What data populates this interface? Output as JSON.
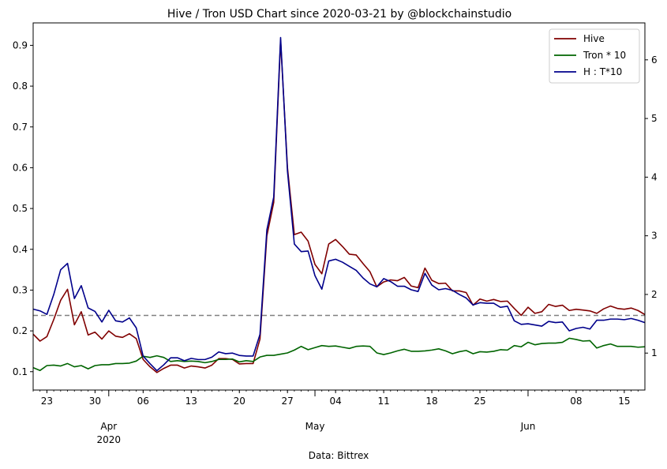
{
  "chart_data": {
    "type": "line",
    "title": "Hive / Tron USD Chart since 2020-03-21 by @blockchainstudio",
    "xlabel": "Data: Bittrex",
    "ylabel_left": "",
    "ylabel_right": "",
    "x_start": "2020-03-21",
    "x_end": "2020-06-18",
    "xlim_days": [
      0,
      89
    ],
    "ylim_left": [
      0.055,
      0.955
    ],
    "ylim_right": [
      0.37,
      6.63
    ],
    "left_ticks": [
      0.1,
      0.2,
      0.3,
      0.4,
      0.5,
      0.6,
      0.7,
      0.8,
      0.9
    ],
    "left_tick_labels": [
      "0.1",
      "0.2",
      "0.3",
      "0.4",
      "0.5",
      "0.6",
      "0.7",
      "0.8",
      "0.9"
    ],
    "right_ticks": [
      1,
      2,
      3,
      4,
      5,
      6
    ],
    "right_tick_labels": [
      "1",
      "2",
      "3",
      "4",
      "5",
      "6"
    ],
    "x_minor_ticks": [
      {
        "date": "2020-03-23",
        "label": "23"
      },
      {
        "date": "2020-03-30",
        "label": "30"
      },
      {
        "date": "2020-04-06",
        "label": "06"
      },
      {
        "date": "2020-04-13",
        "label": "13"
      },
      {
        "date": "2020-04-20",
        "label": "20"
      },
      {
        "date": "2020-04-27",
        "label": "27"
      },
      {
        "date": "2020-05-04",
        "label": "04"
      },
      {
        "date": "2020-05-11",
        "label": "11"
      },
      {
        "date": "2020-05-18",
        "label": "18"
      },
      {
        "date": "2020-05-25",
        "label": "25"
      },
      {
        "date": "2020-06-08",
        "label": "08"
      },
      {
        "date": "2020-06-15",
        "label": "15"
      }
    ],
    "x_major_ticks": [
      {
        "date": "2020-04-01",
        "label": "Apr",
        "sublabel": "2020"
      },
      {
        "date": "2020-05-01",
        "label": "May",
        "sublabel": ""
      },
      {
        "date": "2020-06-01",
        "label": "Jun",
        "sublabel": ""
      }
    ],
    "reference_line": {
      "axis": "left",
      "value": 0.238,
      "style": "dashed",
      "color": "#808080"
    },
    "legend_position": "top-right",
    "grid": false,
    "series": [
      {
        "name": "Hive",
        "axis": "left",
        "color": "#800000",
        "x": [
          "2020-03-21",
          "2020-03-22",
          "2020-03-23",
          "2020-03-24",
          "2020-03-25",
          "2020-03-26",
          "2020-03-27",
          "2020-03-28",
          "2020-03-29",
          "2020-03-30",
          "2020-03-31",
          "2020-04-01",
          "2020-04-02",
          "2020-04-03",
          "2020-04-04",
          "2020-04-05",
          "2020-04-06",
          "2020-04-07",
          "2020-04-08",
          "2020-04-09",
          "2020-04-10",
          "2020-04-11",
          "2020-04-12",
          "2020-04-13",
          "2020-04-14",
          "2020-04-15",
          "2020-04-16",
          "2020-04-17",
          "2020-04-18",
          "2020-04-19",
          "2020-04-20",
          "2020-04-21",
          "2020-04-22",
          "2020-04-23",
          "2020-04-24",
          "2020-04-25",
          "2020-04-26",
          "2020-04-27",
          "2020-04-28",
          "2020-04-29",
          "2020-04-30",
          "2020-05-01",
          "2020-05-02",
          "2020-05-03",
          "2020-05-04",
          "2020-05-05",
          "2020-05-06",
          "2020-05-07",
          "2020-05-08",
          "2020-05-09",
          "2020-05-10",
          "2020-05-11",
          "2020-05-12",
          "2020-05-13",
          "2020-05-14",
          "2020-05-15",
          "2020-05-16",
          "2020-05-17",
          "2020-05-18",
          "2020-05-19",
          "2020-05-20",
          "2020-05-21",
          "2020-05-22",
          "2020-05-23",
          "2020-05-24",
          "2020-05-25",
          "2020-05-26",
          "2020-05-27",
          "2020-05-28",
          "2020-05-29",
          "2020-05-30",
          "2020-05-31",
          "2020-06-01",
          "2020-06-02",
          "2020-06-03",
          "2020-06-04",
          "2020-06-05",
          "2020-06-06",
          "2020-06-07",
          "2020-06-08",
          "2020-06-09",
          "2020-06-10",
          "2020-06-11",
          "2020-06-12",
          "2020-06-13",
          "2020-06-14",
          "2020-06-15",
          "2020-06-16",
          "2020-06-17",
          "2020-06-18"
        ],
        "values": [
          0.192,
          0.175,
          0.186,
          0.228,
          0.275,
          0.302,
          0.215,
          0.247,
          0.19,
          0.197,
          0.18,
          0.2,
          0.187,
          0.184,
          0.193,
          0.181,
          0.13,
          0.112,
          0.098,
          0.108,
          0.116,
          0.116,
          0.109,
          0.114,
          0.112,
          0.109,
          0.116,
          0.132,
          0.132,
          0.13,
          0.119,
          0.12,
          0.12,
          0.18,
          0.433,
          0.515,
          0.912,
          0.6,
          0.436,
          0.442,
          0.42,
          0.363,
          0.34,
          0.413,
          0.424,
          0.407,
          0.388,
          0.386,
          0.365,
          0.345,
          0.308,
          0.32,
          0.325,
          0.323,
          0.331,
          0.31,
          0.306,
          0.354,
          0.324,
          0.316,
          0.317,
          0.298,
          0.298,
          0.294,
          0.263,
          0.278,
          0.273,
          0.277,
          0.272,
          0.273,
          0.255,
          0.238,
          0.258,
          0.243,
          0.247,
          0.265,
          0.26,
          0.263,
          0.25,
          0.253,
          0.251,
          0.249,
          0.243,
          0.254,
          0.261,
          0.255,
          0.253,
          0.256,
          0.25,
          0.24
        ]
      },
      {
        "name": "Tron * 10",
        "axis": "left",
        "color": "#006400",
        "values": [
          0.11,
          0.103,
          0.115,
          0.116,
          0.114,
          0.12,
          0.112,
          0.115,
          0.107,
          0.115,
          0.117,
          0.117,
          0.12,
          0.12,
          0.121,
          0.126,
          0.138,
          0.135,
          0.139,
          0.135,
          0.125,
          0.127,
          0.125,
          0.126,
          0.125,
          0.122,
          0.125,
          0.13,
          0.13,
          0.131,
          0.124,
          0.127,
          0.125,
          0.136,
          0.14,
          0.14,
          0.143,
          0.146,
          0.153,
          0.162,
          0.154,
          0.159,
          0.164,
          0.162,
          0.163,
          0.16,
          0.157,
          0.162,
          0.163,
          0.162,
          0.146,
          0.142,
          0.146,
          0.151,
          0.155,
          0.15,
          0.15,
          0.151,
          0.153,
          0.156,
          0.151,
          0.144,
          0.149,
          0.152,
          0.144,
          0.149,
          0.148,
          0.15,
          0.154,
          0.153,
          0.164,
          0.161,
          0.172,
          0.166,
          0.169,
          0.17,
          0.17,
          0.172,
          0.182,
          0.179,
          0.175,
          0.176,
          0.158,
          0.164,
          0.168,
          0.162,
          0.162,
          0.162,
          0.16,
          0.161
        ]
      },
      {
        "name": "H : T*10",
        "axis": "right",
        "color": "#00008b",
        "values": [
          1.75,
          1.72,
          1.66,
          2.0,
          2.42,
          2.53,
          1.93,
          2.15,
          1.77,
          1.71,
          1.53,
          1.73,
          1.55,
          1.53,
          1.6,
          1.43,
          0.95,
          0.82,
          0.7,
          0.8,
          0.92,
          0.92,
          0.87,
          0.91,
          0.89,
          0.89,
          0.93,
          1.02,
          0.99,
          1.0,
          0.96,
          0.95,
          0.95,
          1.32,
          3.1,
          3.66,
          6.38,
          4.1,
          2.86,
          2.73,
          2.74,
          2.32,
          2.09,
          2.57,
          2.6,
          2.55,
          2.48,
          2.41,
          2.28,
          2.18,
          2.13,
          2.27,
          2.22,
          2.14,
          2.14,
          2.08,
          2.05,
          2.36,
          2.16,
          2.08,
          2.1,
          2.07,
          2.0,
          1.94,
          1.82,
          1.86,
          1.85,
          1.85,
          1.78,
          1.8,
          1.55,
          1.49,
          1.5,
          1.48,
          1.46,
          1.54,
          1.52,
          1.53,
          1.38,
          1.42,
          1.44,
          1.41,
          1.56,
          1.56,
          1.58,
          1.58,
          1.57,
          1.59,
          1.56,
          1.52
        ]
      }
    ]
  }
}
